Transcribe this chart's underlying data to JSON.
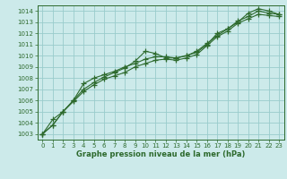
{
  "title": "Graphe pression niveau de la mer (hPa)",
  "bg_color": "#cceaea",
  "grid_color": "#99cccc",
  "line_color": "#2d6a2d",
  "marker_color": "#2d6a2d",
  "xlim": [
    -0.5,
    23.5
  ],
  "ylim": [
    1002.5,
    1014.5
  ],
  "xtick_labels": [
    "0",
    "1",
    "2",
    "3",
    "4",
    "5",
    "6",
    "7",
    "8",
    "9",
    "10",
    "11",
    "12",
    "13",
    "14",
    "15",
    "16",
    "17",
    "18",
    "19",
    "20",
    "21",
    "22",
    "23"
  ],
  "ytick_labels": [
    "1003",
    "1004",
    "1005",
    "1006",
    "1007",
    "1008",
    "1009",
    "1010",
    "1011",
    "1012",
    "1013",
    "1014"
  ],
  "ytick_vals": [
    1003,
    1004,
    1005,
    1006,
    1007,
    1008,
    1009,
    1010,
    1011,
    1012,
    1013,
    1014
  ],
  "series": [
    [
      1003.0,
      1003.8,
      1005.0,
      1006.0,
      1007.0,
      1007.6,
      1008.1,
      1008.5,
      1008.9,
      1009.5,
      1010.4,
      1010.2,
      1009.8,
      1009.8,
      1010.0,
      1010.3,
      1011.0,
      1012.0,
      1012.4,
      1013.0,
      1013.8,
      1014.2,
      1014.0,
      1013.7
    ],
    [
      1003.0,
      1003.8,
      1005.0,
      1006.0,
      1007.5,
      1008.0,
      1008.3,
      1008.6,
      1009.0,
      1009.3,
      1009.7,
      1009.9,
      1009.9,
      1009.8,
      1010.0,
      1010.4,
      1011.1,
      1011.8,
      1012.4,
      1013.1,
      1013.5,
      1014.0,
      1013.8,
      1013.7
    ],
    [
      1003.0,
      1004.3,
      1005.0,
      1005.9,
      1006.8,
      1007.4,
      1007.9,
      1008.2,
      1008.5,
      1009.0,
      1009.3,
      1009.6,
      1009.7,
      1009.6,
      1009.8,
      1010.1,
      1010.9,
      1011.7,
      1012.2,
      1012.9,
      1013.3,
      1013.7,
      1013.6,
      1013.5
    ]
  ],
  "tick_fontsize": 5,
  "xlabel_fontsize": 6,
  "tick_color": "#2d6a2d",
  "spine_color": "#2d6a2d"
}
